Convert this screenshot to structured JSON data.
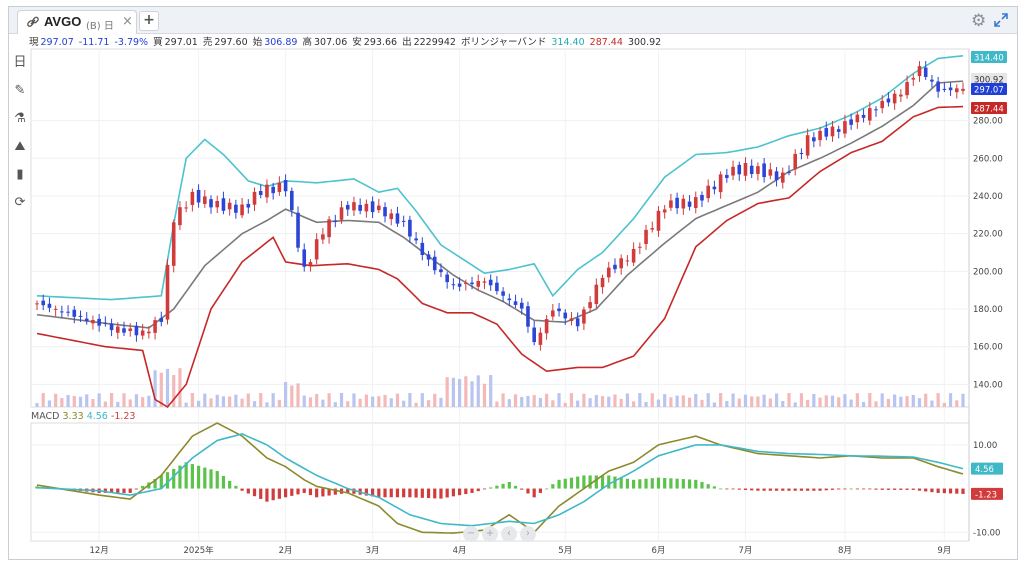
{
  "tab": {
    "symbol": "AVGO",
    "subtitle": "(B) 日",
    "close": "×",
    "add": "+"
  },
  "quote": {
    "cur_label": "現",
    "cur": "297.07",
    "chg": "-11.71",
    "chg_pct": "-3.79%",
    "bid_label": "買",
    "bid": "297.01",
    "ask_label": "売",
    "ask": "297.60",
    "open_label": "始",
    "open": "306.89",
    "high_label": "高",
    "high": "307.06",
    "low_label": "安",
    "low": "293.66",
    "vol_label": "出",
    "vol": "2229942",
    "bb_label": "ボリンジャーバンド",
    "bb_upper": "314.40",
    "bb_lower": "287.44",
    "bb_mid": "300.92"
  },
  "macd_legend": {
    "label": "MACD",
    "v1": "3.33",
    "v2": "4.56",
    "v3": "-1.23"
  },
  "icons": [
    "link-icon",
    "gear-icon",
    "expand-icon",
    "calendar-icon",
    "pen-icon",
    "flask-icon",
    "mountain-chart-icon",
    "bar-chart-icon",
    "refresh-icon"
  ],
  "tools": [
    "日",
    "✎",
    "⚗",
    "⛰",
    "▮",
    "⟳"
  ],
  "colors": {
    "up": "#d23b3b",
    "down": "#2b45d6",
    "upper": "#4cc3cf",
    "lower": "#c62828",
    "mid": "#7a7a7a",
    "macd": "#8c8a2c",
    "signal": "#3fb8c8",
    "hist_pos": "#5bc24a",
    "hist_neg": "#d23b3b"
  },
  "chart_data": [
    {
      "type": "candlestick",
      "x_tick_labels": [
        "12月",
        "2025年",
        "2月",
        "3月",
        "4月",
        "5月",
        "6月",
        "7月",
        "8月",
        "9月"
      ],
      "y_tick_labels": [
        "140.00",
        "160.00",
        "180.00",
        "200.00",
        "220.00",
        "240.00",
        "260.00",
        "280.00"
      ],
      "ylim": [
        128,
        318
      ],
      "price_tags": [
        "314.40",
        "300.92",
        "297.07",
        "287.44"
      ],
      "approx_close": [
        [
          0,
          183
        ],
        [
          12,
          170
        ],
        [
          17,
          167
        ],
        [
          20,
          175
        ],
        [
          22,
          228
        ],
        [
          25,
          240
        ],
        [
          29,
          235
        ],
        [
          33,
          233
        ],
        [
          36,
          243
        ],
        [
          40,
          245
        ],
        [
          43,
          200
        ],
        [
          46,
          222
        ],
        [
          50,
          235
        ],
        [
          55,
          233
        ],
        [
          59,
          225
        ],
        [
          63,
          205
        ],
        [
          67,
          192
        ],
        [
          72,
          195
        ],
        [
          75,
          187
        ],
        [
          78,
          180
        ],
        [
          80,
          162
        ],
        [
          83,
          180
        ],
        [
          87,
          172
        ],
        [
          91,
          198
        ],
        [
          96,
          210
        ],
        [
          101,
          235
        ],
        [
          106,
          237
        ],
        [
          111,
          252
        ],
        [
          114,
          255
        ],
        [
          120,
          250
        ],
        [
          124,
          270
        ],
        [
          129,
          276
        ],
        [
          134,
          285
        ],
        [
          139,
          295
        ],
        [
          142,
          308
        ],
        [
          145,
          296
        ],
        [
          149,
          297.07
        ]
      ],
      "bollinger": {
        "upper": [
          [
            0,
            187
          ],
          [
            12,
            185
          ],
          [
            20,
            187
          ],
          [
            22,
            225
          ],
          [
            24,
            260
          ],
          [
            27,
            270
          ],
          [
            30,
            262
          ],
          [
            34,
            248
          ],
          [
            37,
            245
          ],
          [
            40,
            248
          ],
          [
            45,
            247
          ],
          [
            51,
            249
          ],
          [
            55,
            242
          ],
          [
            58,
            244
          ],
          [
            61,
            232
          ],
          [
            65,
            214
          ],
          [
            72,
            199
          ],
          [
            76,
            201
          ],
          [
            80,
            204
          ],
          [
            83,
            187
          ],
          [
            87,
            201
          ],
          [
            91,
            210
          ],
          [
            96,
            228
          ],
          [
            101,
            250
          ],
          [
            106,
            262
          ],
          [
            111,
            263
          ],
          [
            116,
            266
          ],
          [
            121,
            272
          ],
          [
            126,
            276
          ],
          [
            131,
            283
          ],
          [
            136,
            292
          ],
          [
            141,
            305
          ],
          [
            145,
            313
          ],
          [
            149,
            314.4
          ]
        ],
        "middle": [
          [
            0,
            177
          ],
          [
            12,
            172
          ],
          [
            18,
            170
          ],
          [
            22,
            180
          ],
          [
            27,
            203
          ],
          [
            33,
            220
          ],
          [
            37,
            227
          ],
          [
            40,
            233
          ],
          [
            45,
            226
          ],
          [
            50,
            227
          ],
          [
            55,
            226
          ],
          [
            59,
            218
          ],
          [
            63,
            208
          ],
          [
            67,
            198
          ],
          [
            71,
            190
          ],
          [
            75,
            184
          ],
          [
            80,
            174
          ],
          [
            85,
            173
          ],
          [
            90,
            180
          ],
          [
            95,
            198
          ],
          [
            101,
            215
          ],
          [
            106,
            228
          ],
          [
            111,
            235
          ],
          [
            116,
            242
          ],
          [
            121,
            253
          ],
          [
            126,
            260
          ],
          [
            131,
            268
          ],
          [
            136,
            277
          ],
          [
            141,
            288
          ],
          [
            145,
            300
          ],
          [
            149,
            300.92
          ]
        ],
        "lower": [
          [
            0,
            167
          ],
          [
            11,
            160
          ],
          [
            17,
            158
          ],
          [
            19,
            132
          ],
          [
            21,
            128
          ],
          [
            24,
            140
          ],
          [
            28,
            180
          ],
          [
            33,
            205
          ],
          [
            38,
            218
          ],
          [
            40,
            205
          ],
          [
            44,
            203
          ],
          [
            50,
            204
          ],
          [
            55,
            201
          ],
          [
            58,
            196
          ],
          [
            62,
            183
          ],
          [
            66,
            178
          ],
          [
            70,
            178
          ],
          [
            74,
            172
          ],
          [
            78,
            156
          ],
          [
            82,
            147
          ],
          [
            87,
            149
          ],
          [
            91,
            149
          ],
          [
            96,
            155
          ],
          [
            101,
            175
          ],
          [
            106,
            213
          ],
          [
            111,
            227
          ],
          [
            116,
            236
          ],
          [
            121,
            239
          ],
          [
            126,
            253
          ],
          [
            131,
            263
          ],
          [
            136,
            269
          ],
          [
            141,
            282
          ],
          [
            145,
            287
          ],
          [
            149,
            287.44
          ]
        ]
      },
      "volume_visible": true
    },
    {
      "type": "line+bar",
      "title": "MACD",
      "y_tick_labels": [
        "10.00",
        "-10.00"
      ],
      "ylim": [
        -12,
        15
      ],
      "last_values": {
        "macd": "3.33",
        "signal": "4.56",
        "hist": "-1.23"
      },
      "macd": [
        [
          0,
          0.8
        ],
        [
          10,
          -1.5
        ],
        [
          15,
          -2.4
        ],
        [
          20,
          3
        ],
        [
          25,
          12
        ],
        [
          29,
          15
        ],
        [
          33,
          12
        ],
        [
          37,
          7
        ],
        [
          40,
          5
        ],
        [
          43,
          2
        ],
        [
          45,
          0.5
        ],
        [
          50,
          -1
        ],
        [
          55,
          -4
        ],
        [
          58,
          -8
        ],
        [
          62,
          -10
        ],
        [
          67,
          -10.2
        ],
        [
          72,
          -9.5
        ],
        [
          76,
          -6
        ],
        [
          80,
          -10
        ],
        [
          84,
          -4
        ],
        [
          88,
          0
        ],
        [
          92,
          4
        ],
        [
          96,
          6
        ],
        [
          100,
          10
        ],
        [
          106,
          12
        ],
        [
          110,
          10
        ],
        [
          116,
          8
        ],
        [
          121,
          7.5
        ],
        [
          126,
          7
        ],
        [
          131,
          7.5
        ],
        [
          136,
          7
        ],
        [
          141,
          7
        ],
        [
          145,
          5
        ],
        [
          149,
          3.33
        ]
      ],
      "signal": [
        [
          0,
          0.2
        ],
        [
          10,
          -0.5
        ],
        [
          15,
          -1.5
        ],
        [
          20,
          0
        ],
        [
          25,
          7
        ],
        [
          29,
          11
        ],
        [
          33,
          12.5
        ],
        [
          37,
          10
        ],
        [
          40,
          7
        ],
        [
          45,
          3
        ],
        [
          50,
          0
        ],
        [
          55,
          -2
        ],
        [
          60,
          -6
        ],
        [
          65,
          -8
        ],
        [
          70,
          -8.5
        ],
        [
          76,
          -7.5
        ],
        [
          80,
          -8
        ],
        [
          84,
          -6
        ],
        [
          88,
          -3
        ],
        [
          92,
          1
        ],
        [
          96,
          4
        ],
        [
          100,
          7.5
        ],
        [
          106,
          10
        ],
        [
          110,
          10
        ],
        [
          116,
          8.5
        ],
        [
          121,
          8
        ],
        [
          126,
          7.8
        ],
        [
          131,
          7.5
        ],
        [
          136,
          7.4
        ],
        [
          141,
          7.2
        ],
        [
          145,
          6
        ],
        [
          149,
          4.56
        ]
      ],
      "hist": [
        [
          0,
          0.5
        ],
        [
          10,
          -1
        ],
        [
          15,
          -1
        ],
        [
          20,
          3
        ],
        [
          24,
          6
        ],
        [
          29,
          4
        ],
        [
          33,
          -0.5
        ],
        [
          37,
          -3
        ],
        [
          40,
          -2
        ],
        [
          43,
          -1
        ],
        [
          45,
          -2
        ],
        [
          50,
          -1
        ],
        [
          55,
          -2
        ],
        [
          60,
          -2
        ],
        [
          65,
          -2.3
        ],
        [
          70,
          -1
        ],
        [
          76,
          1.5
        ],
        [
          80,
          -2
        ],
        [
          84,
          2
        ],
        [
          88,
          3
        ],
        [
          92,
          3
        ],
        [
          96,
          2
        ],
        [
          100,
          2.5
        ],
        [
          106,
          2
        ],
        [
          110,
          0
        ],
        [
          116,
          -0.5
        ],
        [
          121,
          -0.5
        ],
        [
          126,
          -0.5
        ],
        [
          131,
          0
        ],
        [
          136,
          -0.3
        ],
        [
          141,
          -0.3
        ],
        [
          145,
          -1
        ],
        [
          149,
          -1.23
        ]
      ]
    }
  ]
}
